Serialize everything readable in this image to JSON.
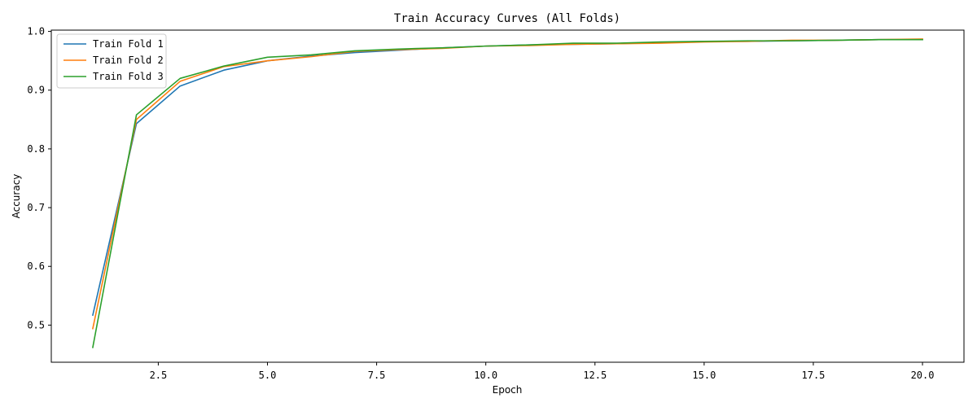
{
  "chart_data": {
    "type": "line",
    "title": "Train Accuracy Curves (All Folds)",
    "xlabel": "Epoch",
    "ylabel": "Accuracy",
    "xlim": [
      0.05,
      20.95
    ],
    "ylim": [
      0.4368,
      1.0022
    ],
    "xticks": [
      2.5,
      5.0,
      7.5,
      10.0,
      12.5,
      15.0,
      17.5,
      20.0
    ],
    "xtick_labels": [
      "2.5",
      "5.0",
      "7.5",
      "10.0",
      "12.5",
      "15.0",
      "17.5",
      "20.0"
    ],
    "yticks": [
      0.5,
      0.6,
      0.7,
      0.8,
      0.9,
      1.0
    ],
    "ytick_labels": [
      "0.5",
      "0.6",
      "0.7",
      "0.8",
      "0.9",
      "1.0"
    ],
    "grid": false,
    "legend_position": "top-left",
    "x": [
      1,
      2,
      3,
      4,
      5,
      6,
      7,
      8,
      9,
      10,
      11,
      12,
      13,
      14,
      15,
      16,
      17,
      18,
      19,
      20
    ],
    "series": [
      {
        "name": "Train Fold 1",
        "color": "#1f77b4",
        "values": [
          0.517,
          0.843,
          0.907,
          0.934,
          0.95,
          0.958,
          0.964,
          0.968,
          0.972,
          0.975,
          0.977,
          0.978,
          0.979,
          0.981,
          0.983,
          0.983,
          0.984,
          0.985,
          0.986,
          0.986
        ]
      },
      {
        "name": "Train Fold 2",
        "color": "#ff7f0e",
        "values": [
          0.494,
          0.85,
          0.915,
          0.94,
          0.95,
          0.957,
          0.966,
          0.969,
          0.971,
          0.975,
          0.976,
          0.978,
          0.979,
          0.98,
          0.982,
          0.983,
          0.985,
          0.985,
          0.986,
          0.987
        ]
      },
      {
        "name": "Train Fold 3",
        "color": "#2ca02c",
        "values": [
          0.462,
          0.858,
          0.92,
          0.941,
          0.956,
          0.96,
          0.967,
          0.97,
          0.972,
          0.975,
          0.977,
          0.98,
          0.98,
          0.982,
          0.983,
          0.984,
          0.984,
          0.985,
          0.986,
          0.986
        ]
      }
    ]
  }
}
